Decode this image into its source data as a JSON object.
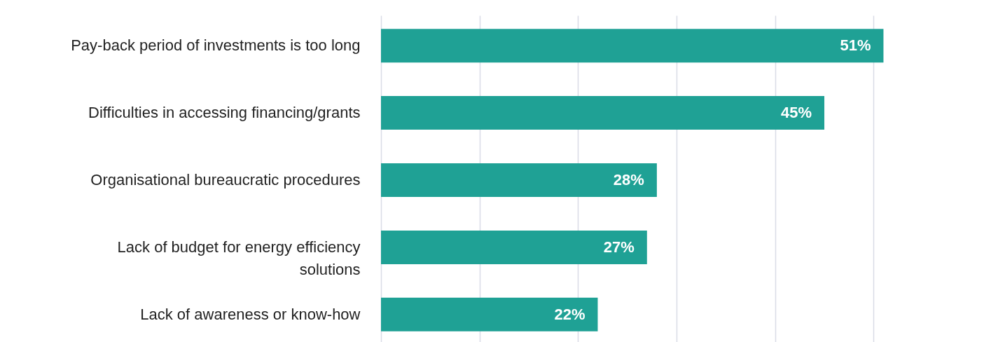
{
  "chart_data": {
    "type": "bar",
    "orientation": "horizontal",
    "categories": [
      "Pay-back period of investments is too long",
      "Difficulties in accessing financing/grants",
      "Organisational bureaucratic procedures",
      "Lack of budget for energy efficiency solutions",
      "Lack of awareness or know-how"
    ],
    "values": [
      51,
      45,
      28,
      27,
      22
    ],
    "color": "#1fa195",
    "value_labels": [
      "51%",
      "45%",
      "28%",
      "27%",
      "22%"
    ],
    "xlim": [
      0,
      59
    ],
    "xticks": [
      {
        "value": 0,
        "label": null
      },
      {
        "value": 10,
        "label": null
      },
      {
        "value": 20,
        "label": null
      },
      {
        "value": 30,
        "label": null
      },
      {
        "value": 40,
        "label": null
      },
      {
        "value": 50,
        "label": null
      }
    ],
    "grid": "x"
  }
}
